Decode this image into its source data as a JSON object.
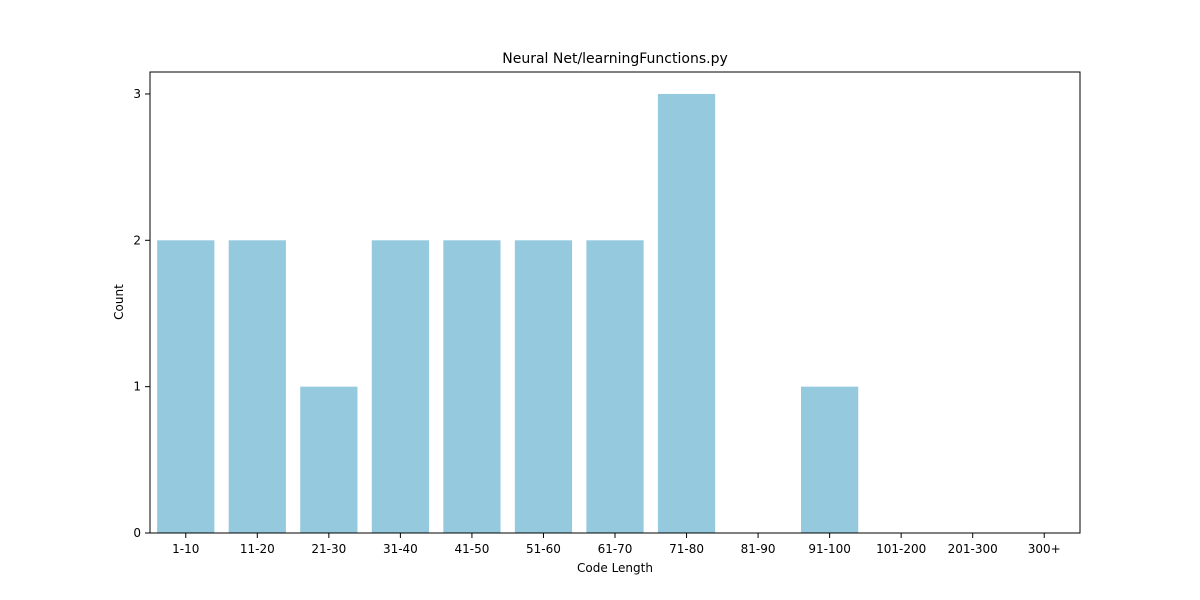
{
  "chart_data": {
    "type": "bar",
    "title": "Neural Net/learningFunctions.py",
    "xlabel": "Code Length",
    "ylabel": "Count",
    "categories": [
      "1-10",
      "11-20",
      "21-30",
      "31-40",
      "41-50",
      "51-60",
      "61-70",
      "71-80",
      "81-90",
      "91-100",
      "101-200",
      "201-300",
      "300+"
    ],
    "values": [
      2,
      2,
      1,
      2,
      2,
      2,
      2,
      3,
      0,
      1,
      0,
      0,
      0
    ],
    "ylim": [
      0,
      3.15
    ],
    "yticks": [
      "0",
      "1",
      "2",
      "3"
    ],
    "grid": false,
    "legend": "none",
    "bar_color": "#95c9de",
    "axis_color": "#000000"
  }
}
